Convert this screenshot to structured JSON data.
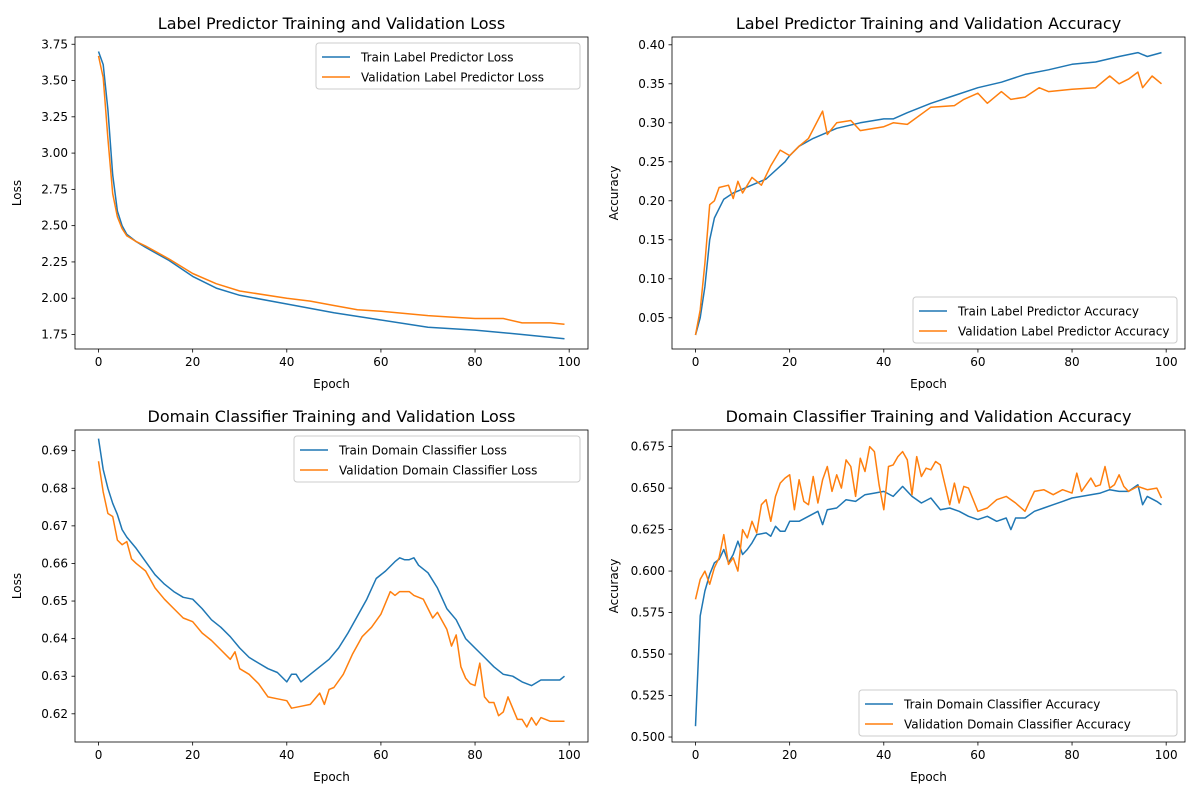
{
  "chart_data": [
    {
      "type": "line",
      "title": "Label Predictor Training and Validation Loss",
      "xlabel": "Epoch",
      "ylabel": "Loss",
      "xlim": [
        -5,
        104
      ],
      "ylim": [
        1.65,
        3.8
      ],
      "xticks": [
        0,
        20,
        40,
        60,
        80,
        100
      ],
      "yticks": [
        1.75,
        2.0,
        2.25,
        2.5,
        2.75,
        3.0,
        3.25,
        3.5,
        3.75
      ],
      "ytick_labels": [
        "1.75",
        "2.00",
        "2.25",
        "2.50",
        "2.75",
        "3.00",
        "3.25",
        "3.50",
        "3.75"
      ],
      "legend_position": "upper right",
      "series": [
        {
          "name": "Train Label Predictor Loss",
          "color": "#1f77b4",
          "x": [
            0,
            1,
            2,
            3,
            4,
            5,
            6,
            8,
            10,
            15,
            20,
            25,
            30,
            40,
            50,
            60,
            70,
            80,
            90,
            99
          ],
          "y": [
            3.7,
            3.61,
            3.3,
            2.85,
            2.6,
            2.5,
            2.44,
            2.39,
            2.35,
            2.26,
            2.15,
            2.07,
            2.02,
            1.96,
            1.9,
            1.85,
            1.8,
            1.78,
            1.75,
            1.72
          ]
        },
        {
          "name": "Validation Label Predictor Loss",
          "color": "#ff7f0e",
          "x": [
            0,
            1,
            2,
            3,
            4,
            5,
            6,
            8,
            10,
            15,
            20,
            25,
            30,
            40,
            45,
            50,
            55,
            60,
            70,
            75,
            80,
            86,
            90,
            96,
            99
          ],
          "y": [
            3.67,
            3.52,
            3.1,
            2.72,
            2.56,
            2.48,
            2.43,
            2.39,
            2.36,
            2.27,
            2.17,
            2.1,
            2.05,
            2.0,
            1.98,
            1.95,
            1.92,
            1.91,
            1.88,
            1.87,
            1.86,
            1.86,
            1.83,
            1.83,
            1.82
          ]
        }
      ]
    },
    {
      "type": "line",
      "title": "Label Predictor Training and Validation Accuracy",
      "xlabel": "Epoch",
      "ylabel": "Accuracy",
      "xlim": [
        -5,
        104
      ],
      "ylim": [
        0.01,
        0.41
      ],
      "xticks": [
        0,
        20,
        40,
        60,
        80,
        100
      ],
      "yticks": [
        0.05,
        0.1,
        0.15,
        0.2,
        0.25,
        0.3,
        0.35,
        0.4
      ],
      "ytick_labels": [
        "0.05",
        "0.10",
        "0.15",
        "0.20",
        "0.25",
        "0.30",
        "0.35",
        "0.40"
      ],
      "legend_position": "lower right",
      "series": [
        {
          "name": "Train Label Predictor Accuracy",
          "color": "#1f77b4",
          "x": [
            0,
            1,
            2,
            3,
            4,
            5,
            6,
            8,
            10,
            15,
            19,
            20,
            22,
            25,
            30,
            35,
            40,
            42,
            45,
            50,
            55,
            60,
            65,
            70,
            75,
            80,
            85,
            90,
            94,
            96,
            99
          ],
          "y": [
            0.028,
            0.05,
            0.09,
            0.15,
            0.178,
            0.19,
            0.202,
            0.21,
            0.215,
            0.228,
            0.25,
            0.258,
            0.27,
            0.28,
            0.293,
            0.3,
            0.305,
            0.305,
            0.313,
            0.325,
            0.335,
            0.345,
            0.352,
            0.362,
            0.368,
            0.375,
            0.378,
            0.385,
            0.39,
            0.385,
            0.39
          ]
        },
        {
          "name": "Validation Label Predictor Accuracy",
          "color": "#ff7f0e",
          "x": [
            0,
            1,
            2,
            3,
            4,
            5,
            7,
            8,
            9,
            10,
            12,
            14,
            16,
            18,
            20,
            22,
            24,
            27,
            28,
            30,
            33,
            35,
            40,
            42,
            45,
            50,
            55,
            57,
            60,
            62,
            65,
            67,
            70,
            73,
            75,
            80,
            85,
            88,
            90,
            92,
            94,
            95,
            97,
            99
          ],
          "y": [
            0.028,
            0.06,
            0.12,
            0.195,
            0.2,
            0.217,
            0.22,
            0.203,
            0.225,
            0.21,
            0.23,
            0.22,
            0.245,
            0.265,
            0.258,
            0.27,
            0.28,
            0.315,
            0.285,
            0.3,
            0.303,
            0.29,
            0.295,
            0.3,
            0.298,
            0.32,
            0.322,
            0.33,
            0.338,
            0.325,
            0.34,
            0.33,
            0.333,
            0.345,
            0.34,
            0.343,
            0.345,
            0.36,
            0.35,
            0.356,
            0.365,
            0.345,
            0.36,
            0.35
          ]
        }
      ]
    },
    {
      "type": "line",
      "title": "Domain Classifier Training and Validation Loss",
      "xlabel": "Epoch",
      "ylabel": "Loss",
      "xlim": [
        -5,
        104
      ],
      "ylim": [
        0.6125,
        0.6955
      ],
      "xticks": [
        0,
        20,
        40,
        60,
        80,
        100
      ],
      "yticks": [
        0.62,
        0.63,
        0.64,
        0.65,
        0.66,
        0.67,
        0.68,
        0.69
      ],
      "ytick_labels": [
        "0.62",
        "0.63",
        "0.64",
        "0.65",
        "0.66",
        "0.67",
        "0.68",
        "0.69"
      ],
      "legend_position": "upper right",
      "series": [
        {
          "name": "Train Domain Classifier Loss",
          "color": "#1f77b4",
          "x": [
            0,
            1,
            2,
            3,
            4,
            5,
            6,
            8,
            10,
            12,
            14,
            16,
            18,
            20,
            22,
            24,
            26,
            28,
            30,
            32,
            34,
            36,
            38,
            40,
            41,
            42,
            43,
            45,
            47,
            49,
            51,
            53,
            55,
            57,
            59,
            61,
            63,
            64,
            65,
            66,
            67,
            68,
            70,
            72,
            74,
            76,
            78,
            80,
            82,
            84,
            86,
            88,
            90,
            92,
            94,
            96,
            98,
            99
          ],
          "y": [
            0.6932,
            0.685,
            0.68,
            0.676,
            0.673,
            0.669,
            0.667,
            0.664,
            0.6605,
            0.657,
            0.6545,
            0.6525,
            0.651,
            0.6505,
            0.648,
            0.645,
            0.643,
            0.6405,
            0.6375,
            0.635,
            0.6335,
            0.632,
            0.631,
            0.6285,
            0.6305,
            0.6305,
            0.6285,
            0.6305,
            0.6325,
            0.6345,
            0.6375,
            0.6415,
            0.646,
            0.6505,
            0.656,
            0.658,
            0.6605,
            0.6615,
            0.661,
            0.661,
            0.6615,
            0.6595,
            0.6575,
            0.6535,
            0.648,
            0.645,
            0.64,
            0.6375,
            0.635,
            0.6325,
            0.6305,
            0.63,
            0.6285,
            0.6275,
            0.629,
            0.629,
            0.629,
            0.63
          ]
        },
        {
          "name": "Validation Domain Classifier Loss",
          "color": "#ff7f0e",
          "x": [
            0,
            1,
            2,
            3,
            4,
            5,
            6,
            7,
            8,
            10,
            12,
            14,
            16,
            18,
            20,
            22,
            24,
            26,
            28,
            29,
            30,
            32,
            34,
            36,
            38,
            40,
            41,
            43,
            45,
            47,
            48,
            49,
            50,
            52,
            54,
            56,
            58,
            60,
            62,
            63,
            64,
            66,
            67,
            69,
            71,
            72,
            74,
            75,
            76,
            77,
            78,
            79,
            80,
            81,
            82,
            83,
            84,
            85,
            86,
            87,
            88,
            89,
            90,
            91,
            92,
            93,
            94,
            96,
            99
          ],
          "y": [
            0.6872,
            0.679,
            0.6733,
            0.6725,
            0.6662,
            0.665,
            0.6658,
            0.6612,
            0.66,
            0.658,
            0.6535,
            0.6505,
            0.648,
            0.6455,
            0.6445,
            0.6415,
            0.6395,
            0.637,
            0.6345,
            0.6365,
            0.632,
            0.6305,
            0.628,
            0.6245,
            0.624,
            0.6235,
            0.6215,
            0.622,
            0.6225,
            0.6255,
            0.6225,
            0.6265,
            0.627,
            0.6305,
            0.636,
            0.6405,
            0.643,
            0.6465,
            0.6525,
            0.6515,
            0.6525,
            0.6525,
            0.6515,
            0.6505,
            0.6455,
            0.647,
            0.6425,
            0.638,
            0.641,
            0.6325,
            0.6295,
            0.628,
            0.6275,
            0.6335,
            0.6245,
            0.623,
            0.623,
            0.6195,
            0.6205,
            0.6245,
            0.6215,
            0.6185,
            0.6185,
            0.6165,
            0.619,
            0.617,
            0.619,
            0.618,
            0.618
          ]
        }
      ]
    },
    {
      "type": "line",
      "title": "Domain Classifier Training and Validation Accuracy",
      "xlabel": "Epoch",
      "ylabel": "Accuracy",
      "xlim": [
        -5,
        104
      ],
      "ylim": [
        0.497,
        0.685
      ],
      "xticks": [
        0,
        20,
        40,
        60,
        80,
        100
      ],
      "yticks": [
        0.5,
        0.525,
        0.55,
        0.575,
        0.6,
        0.625,
        0.65,
        0.675
      ],
      "ytick_labels": [
        "0.500",
        "0.525",
        "0.550",
        "0.575",
        "0.600",
        "0.625",
        "0.650",
        "0.675"
      ],
      "legend_position": "lower right",
      "series": [
        {
          "name": "Train Domain Classifier Accuracy",
          "color": "#1f77b4",
          "x": [
            0,
            1,
            2,
            3,
            4,
            5,
            6,
            7,
            8,
            9,
            10,
            11,
            12,
            13,
            15,
            16,
            17,
            18,
            19,
            20,
            22,
            24,
            26,
            27,
            28,
            30,
            32,
            34,
            36,
            38,
            40,
            42,
            44,
            46,
            48,
            50,
            52,
            54,
            56,
            58,
            60,
            62,
            64,
            66,
            67,
            68,
            70,
            72,
            74,
            76,
            78,
            80,
            82,
            84,
            86,
            88,
            90,
            92,
            94,
            95,
            96,
            98,
            99
          ],
          "y": [
            0.5065,
            0.573,
            0.588,
            0.598,
            0.605,
            0.607,
            0.613,
            0.605,
            0.61,
            0.618,
            0.61,
            0.613,
            0.617,
            0.622,
            0.623,
            0.621,
            0.627,
            0.624,
            0.624,
            0.63,
            0.63,
            0.633,
            0.636,
            0.628,
            0.637,
            0.638,
            0.643,
            0.642,
            0.646,
            0.647,
            0.648,
            0.645,
            0.651,
            0.645,
            0.641,
            0.644,
            0.637,
            0.638,
            0.636,
            0.633,
            0.631,
            0.633,
            0.63,
            0.632,
            0.625,
            0.632,
            0.632,
            0.636,
            0.638,
            0.64,
            0.642,
            0.644,
            0.645,
            0.646,
            0.647,
            0.649,
            0.648,
            0.648,
            0.652,
            0.64,
            0.645,
            0.642,
            0.64
          ]
        },
        {
          "name": "Validation Domain Classifier Accuracy",
          "color": "#ff7f0e",
          "x": [
            0,
            1,
            2,
            3,
            4,
            5,
            6,
            7,
            8,
            9,
            10,
            11,
            12,
            13,
            14,
            15,
            16,
            17,
            18,
            19,
            20,
            21,
            22,
            23,
            24,
            25,
            26,
            27,
            28,
            29,
            30,
            31,
            32,
            33,
            34,
            35,
            36,
            37,
            38,
            39,
            40,
            41,
            42,
            43,
            44,
            45,
            46,
            47,
            48,
            49,
            50,
            51,
            52,
            53,
            54,
            55,
            56,
            57,
            58,
            60,
            62,
            64,
            66,
            68,
            70,
            72,
            74,
            76,
            78,
            80,
            81,
            82,
            84,
            85,
            86,
            87,
            88,
            89,
            90,
            91,
            92,
            94,
            96,
            98,
            99
          ],
          "y": [
            0.583,
            0.595,
            0.6,
            0.592,
            0.602,
            0.608,
            0.622,
            0.604,
            0.608,
            0.6,
            0.625,
            0.62,
            0.63,
            0.623,
            0.64,
            0.643,
            0.63,
            0.645,
            0.653,
            0.656,
            0.658,
            0.637,
            0.655,
            0.642,
            0.64,
            0.657,
            0.641,
            0.655,
            0.663,
            0.648,
            0.658,
            0.65,
            0.667,
            0.663,
            0.645,
            0.668,
            0.66,
            0.675,
            0.672,
            0.652,
            0.637,
            0.663,
            0.664,
            0.669,
            0.672,
            0.667,
            0.646,
            0.669,
            0.657,
            0.662,
            0.661,
            0.666,
            0.664,
            0.652,
            0.64,
            0.653,
            0.641,
            0.651,
            0.65,
            0.636,
            0.638,
            0.643,
            0.645,
            0.641,
            0.636,
            0.648,
            0.649,
            0.646,
            0.649,
            0.647,
            0.659,
            0.648,
            0.656,
            0.651,
            0.652,
            0.663,
            0.65,
            0.652,
            0.658,
            0.651,
            0.648,
            0.651,
            0.649,
            0.65,
            0.644
          ]
        }
      ]
    }
  ]
}
